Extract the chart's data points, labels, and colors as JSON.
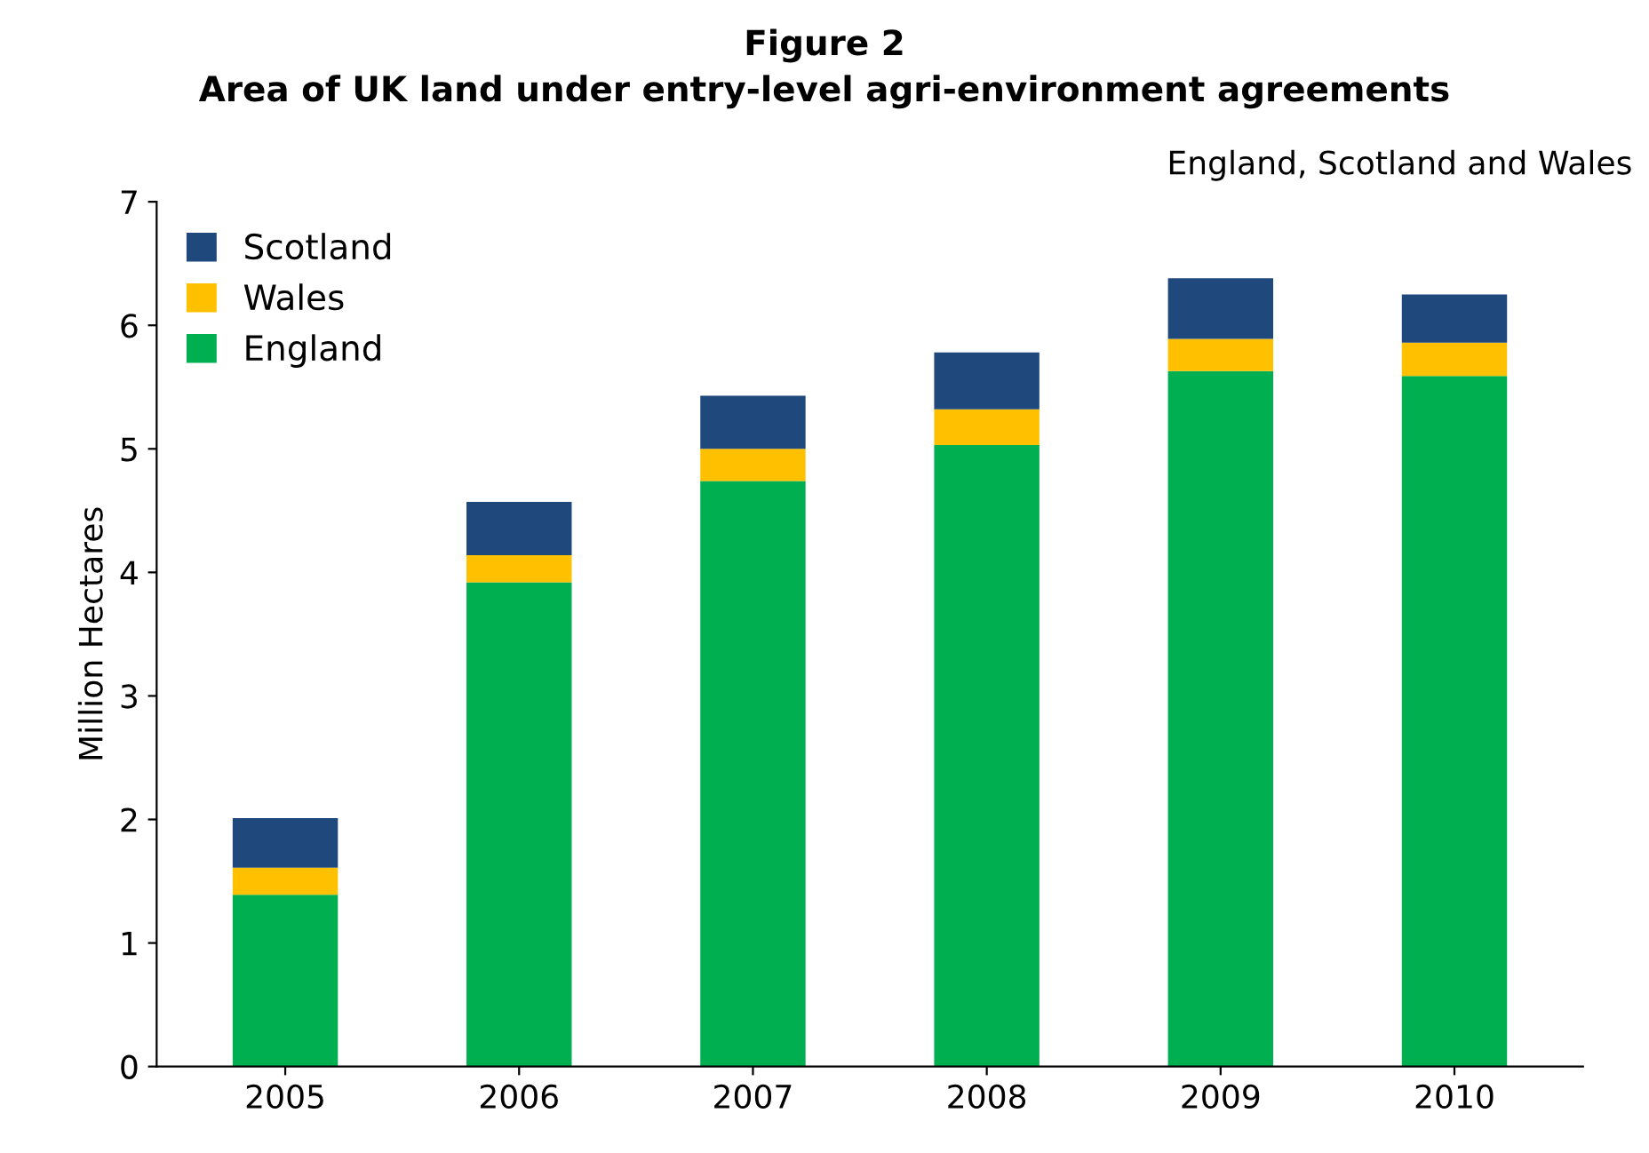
{
  "chart_data": {
    "type": "bar",
    "title": "Figure 2",
    "subtitle": "Area of UK land under entry-level agri-environment agreements",
    "ylabel": "Million Hectares",
    "annotations": [
      "England, Scotland and Wales"
    ],
    "categories": [
      "2005",
      "2006",
      "2007",
      "2008",
      "2009",
      "2010"
    ],
    "stacked": true,
    "series": [
      {
        "name": "England",
        "color": "#00b050",
        "values": [
          1.39,
          3.92,
          4.74,
          5.03,
          5.63,
          5.59
        ]
      },
      {
        "name": "Wales",
        "color": "#ffc000",
        "values": [
          0.22,
          0.22,
          0.26,
          0.29,
          0.26,
          0.27
        ]
      },
      {
        "name": "Scotland",
        "color": "#1f497d",
        "values": [
          0.4,
          0.43,
          0.43,
          0.46,
          0.49,
          0.39
        ]
      }
    ],
    "ylim": [
      0,
      7
    ],
    "yticks": [
      0,
      1,
      2,
      3,
      4,
      5,
      6,
      7
    ],
    "grid": false,
    "legend": "top left"
  }
}
